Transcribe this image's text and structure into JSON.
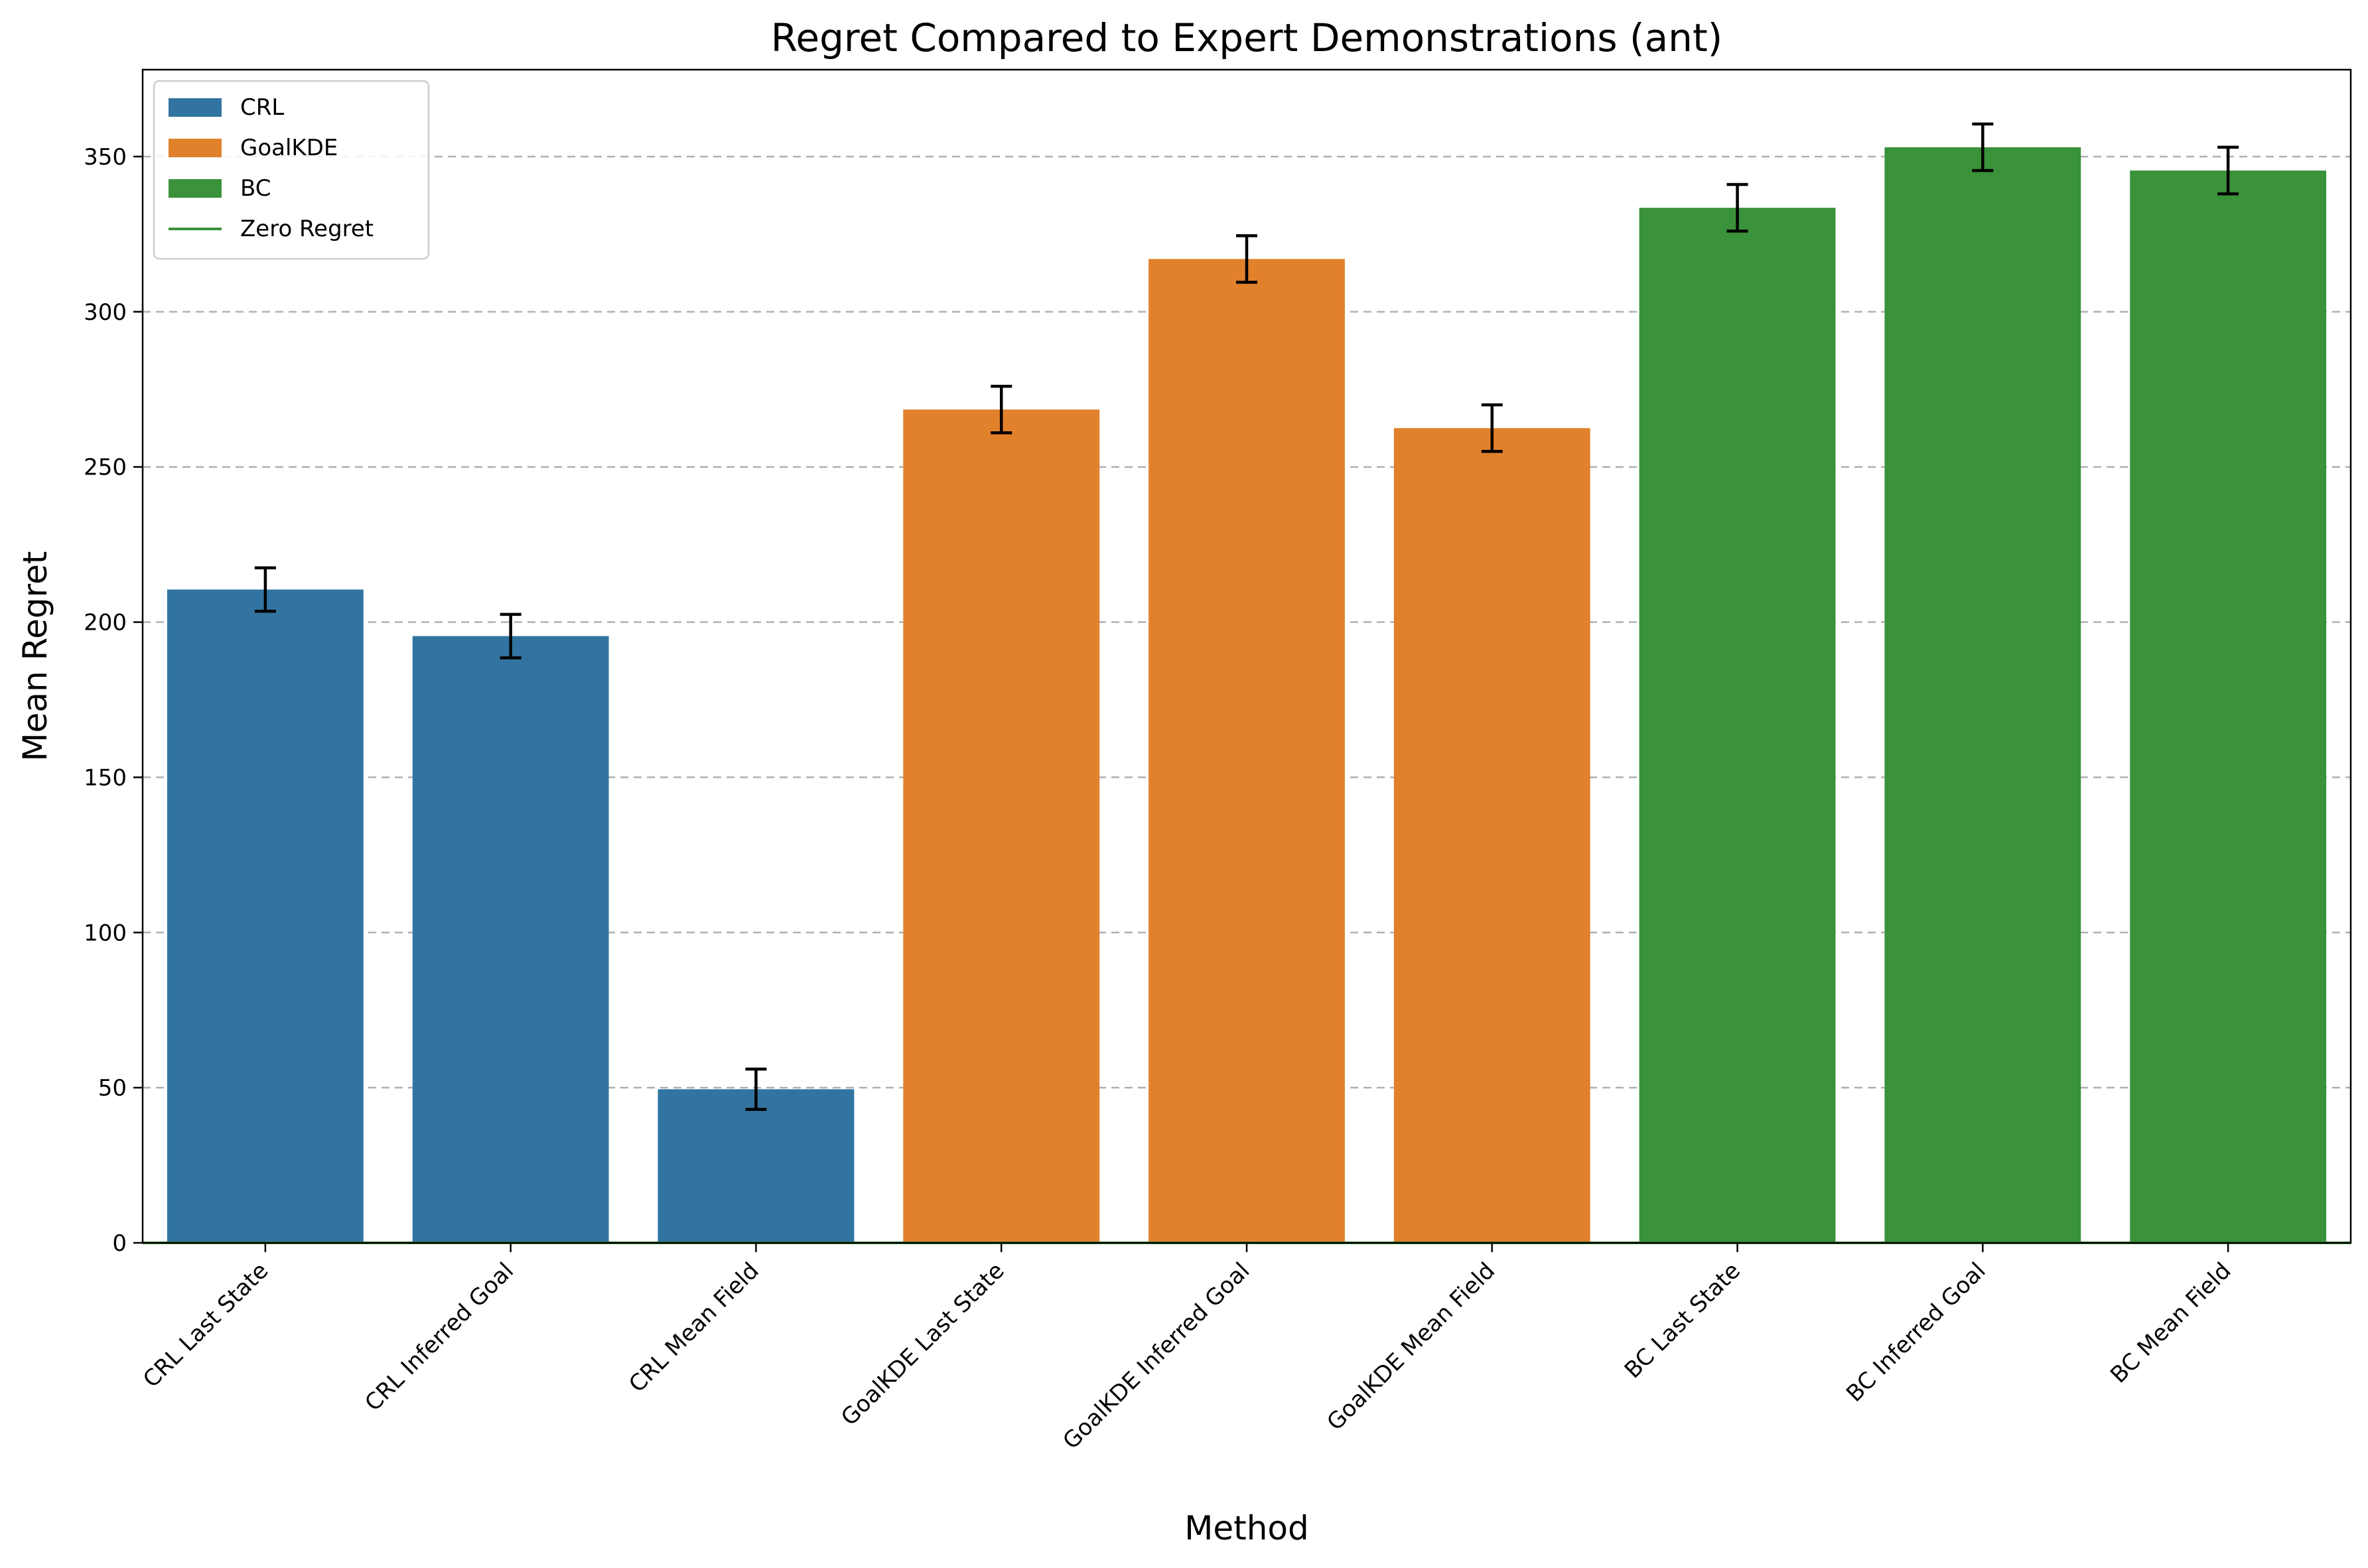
{
  "chart_data": {
    "type": "bar",
    "title": "Regret Compared to Expert Demonstrations (ant)",
    "xlabel": "Method",
    "ylabel": "Mean Regret",
    "ylim": [
      0,
      378
    ],
    "yticks": [
      0,
      50,
      100,
      150,
      200,
      250,
      300,
      350
    ],
    "grid": "y dashed",
    "legend_position": "top-left",
    "categories": [
      "CRL Last State",
      "CRL Inferred Goal",
      "CRL Mean Field",
      "GoalKDE Last State",
      "GoalKDE Inferred Goal",
      "GoalKDE Mean Field",
      "BC Last State",
      "BC Inferred Goal",
      "BC Mean Field"
    ],
    "values": [
      210.5,
      195.5,
      49.5,
      268.5,
      317.0,
      262.5,
      333.5,
      353.0,
      345.5
    ],
    "errors": [
      7.0,
      7.0,
      6.5,
      7.5,
      7.5,
      7.5,
      7.5,
      7.5,
      7.5
    ],
    "group_index": [
      0,
      0,
      0,
      1,
      1,
      1,
      2,
      2,
      2
    ],
    "series": [
      {
        "name": "CRL",
        "color": "#3274a1"
      },
      {
        "name": "GoalKDE",
        "color": "#e1812c"
      },
      {
        "name": "BC",
        "color": "#3a923a"
      }
    ],
    "reference_line": {
      "name": "Zero Regret",
      "value": 0,
      "color": "#3a923a"
    }
  }
}
